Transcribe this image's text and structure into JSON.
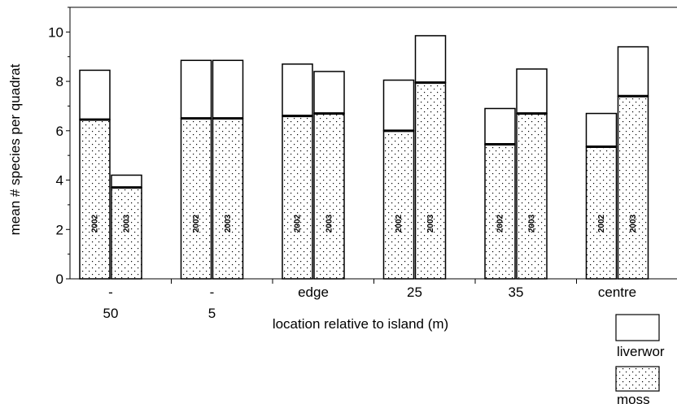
{
  "chart_data": {
    "type": "bar",
    "stacked": true,
    "title": "",
    "xlabel": "location relative to island (m)",
    "ylabel": "mean # species per quadrat",
    "ylim": [
      0,
      11
    ],
    "yticks": [
      0,
      2,
      4,
      6,
      8,
      10
    ],
    "grid": false,
    "legend_position": "bottom-right",
    "categories": [
      {
        "line1": "-",
        "line2": "50"
      },
      {
        "line1": "-",
        "line2": "5"
      },
      {
        "line1": "edge",
        "line2": ""
      },
      {
        "line1": "25",
        "line2": ""
      },
      {
        "line1": "35",
        "line2": ""
      },
      {
        "line1": "centre",
        "line2": ""
      }
    ],
    "bar_labels": [
      "2002",
      "2003"
    ],
    "series": [
      {
        "name": "moss",
        "pattern": "dotted",
        "values": [
          [
            6.45,
            3.7
          ],
          [
            6.5,
            6.5
          ],
          [
            6.6,
            6.7
          ],
          [
            6.0,
            7.95
          ],
          [
            5.45,
            6.7
          ],
          [
            5.35,
            7.4
          ]
        ]
      },
      {
        "name": "liverwor",
        "pattern": "white",
        "totals": [
          [
            8.45,
            4.2
          ],
          [
            8.85,
            8.85
          ],
          [
            8.7,
            8.4
          ],
          [
            8.05,
            9.85
          ],
          [
            6.9,
            8.5
          ],
          [
            6.7,
            9.4
          ]
        ]
      }
    ],
    "colors": {
      "bar_outline": "#000000",
      "background": "#ffffff",
      "dots": "#000000"
    }
  }
}
